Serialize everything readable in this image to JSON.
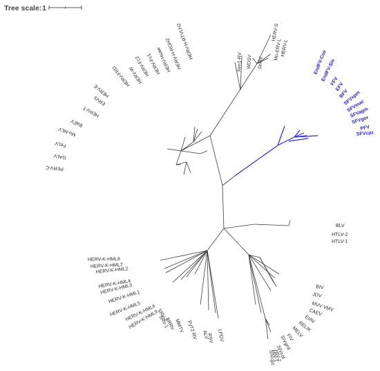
{
  "tree_scale": {
    "label": "Tree scale:",
    "value": "1"
  },
  "colors": {
    "highlight": "#2a2ae0",
    "branch": "#3a3a3a",
    "text": "#2a2a2a"
  },
  "labels": [
    {
      "id": "herv-s",
      "text": "HERV-S",
      "hl": false
    },
    {
      "id": "mo-erv-l",
      "text": "Mo-ERV-L",
      "hl": false
    },
    {
      "id": "herv-l",
      "text": "HERV-L",
      "hl": false
    },
    {
      "id": "sirv",
      "text": "SnRV",
      "hl": false
    },
    {
      "id": "wdsv",
      "text": "WDSV",
      "hl": false
    },
    {
      "id": "xen1-rv",
      "text": "Xen1-RV",
      "hl": false
    },
    {
      "id": "herv-h-rtvl-h2",
      "text": "HERV-H-RTVLH2",
      "hl": false
    },
    {
      "id": "herv-h-rgh2",
      "text": "HERV-H-RGH2",
      "hl": false
    },
    {
      "id": "herv-hsaw",
      "text": "HERV-Hsaw",
      "hl": false
    },
    {
      "id": "herv-fc1",
      "text": "HERV-Fc1",
      "hl": false
    },
    {
      "id": "herv-fc2",
      "text": "HERV-Fc2",
      "hl": false
    },
    {
      "id": "herv-w",
      "text": "HERV-W",
      "hl": false
    },
    {
      "id": "herv-frd",
      "text": "HERV-FRD",
      "hl": false
    },
    {
      "id": "herv-e",
      "text": "HERV-E",
      "hl": false
    },
    {
      "id": "erv3",
      "text": "ERV3",
      "hl": false
    },
    {
      "id": "herv-t",
      "text": "HERV-T",
      "hl": false
    },
    {
      "id": "baev",
      "text": "BaEV",
      "hl": false
    },
    {
      "id": "mo-mlv",
      "text": "Mo-MLV",
      "hl": false
    },
    {
      "id": "felv",
      "text": "FeLV",
      "hl": false
    },
    {
      "id": "galv",
      "text": "GALV",
      "hl": false
    },
    {
      "id": "perv-c",
      "text": "PERV-C",
      "hl": false
    },
    {
      "id": "endfv-coe",
      "text": "EndFV-Coe",
      "hl": true
    },
    {
      "id": "endfv-slo",
      "text": "EndFV-Slo",
      "hl": true
    },
    {
      "id": "ffv",
      "text": "FFV",
      "hl": true
    },
    {
      "id": "efv",
      "text": "EFV",
      "hl": true
    },
    {
      "id": "bfv",
      "text": "BFV",
      "hl": true
    },
    {
      "id": "sfvspm",
      "text": "SFVspm",
      "hl": true
    },
    {
      "id": "sfvmac",
      "text": "SFVmac",
      "hl": true
    },
    {
      "id": "sfvagm",
      "text": "SFVagm",
      "hl": true
    },
    {
      "id": "sfvgor",
      "text": "SFVgor",
      "hl": true
    },
    {
      "id": "pfv",
      "text": "PFV",
      "hl": true
    },
    {
      "id": "sfvcpz",
      "text": "SFVcpz",
      "hl": true
    },
    {
      "id": "blv",
      "text": "BLV",
      "hl": false
    },
    {
      "id": "htlv-2",
      "text": "HTLV-2",
      "hl": false
    },
    {
      "id": "htlv-1",
      "text": "HTLV-1",
      "hl": false
    },
    {
      "id": "biv",
      "text": "BIV",
      "hl": false
    },
    {
      "id": "jdv",
      "text": "JDV",
      "hl": false
    },
    {
      "id": "mvv-vmv",
      "text": "MVV VMV",
      "hl": false
    },
    {
      "id": "caev",
      "text": "CAEV",
      "hl": false
    },
    {
      "id": "eiav",
      "text": "EIAV",
      "hl": false
    },
    {
      "id": "relik",
      "text": "RELIK",
      "hl": false
    },
    {
      "id": "melv",
      "text": "MELV",
      "hl": false
    },
    {
      "id": "fiv",
      "text": "FIV",
      "hl": false
    },
    {
      "id": "sivgml",
      "text": "SIVgml",
      "hl": false
    },
    {
      "id": "sivcol",
      "text": "SIVcol",
      "hl": false
    },
    {
      "id": "hiv-2",
      "text": "HIV-2",
      "hl": false
    },
    {
      "id": "hiv-1",
      "text": "HIV-1",
      "hl": false
    },
    {
      "id": "sivcpz",
      "text": "SIVcpz",
      "hl": false
    },
    {
      "id": "lpdv",
      "text": "LPDV",
      "hl": false
    },
    {
      "id": "rsv",
      "text": "RSV",
      "hl": false
    },
    {
      "id": "alv",
      "text": "ALV",
      "hl": false
    },
    {
      "id": "py72-rv",
      "text": "PyT2-RV",
      "hl": false
    },
    {
      "id": "mmtv",
      "text": "MMTV",
      "hl": false
    },
    {
      "id": "srrv",
      "text": "SRRV",
      "hl": false
    },
    {
      "id": "srv-1",
      "text": "SRV-1",
      "hl": false
    },
    {
      "id": "srv-2",
      "text": "SRV-2",
      "hl": false
    },
    {
      "id": "herv-k-hml9",
      "text": "HERV-K-HML9",
      "hl": false
    },
    {
      "id": "herv-k-hml6",
      "text": "HERV-K-HML6",
      "hl": false
    },
    {
      "id": "herv-k-hml5",
      "text": "HERV-K-HML5",
      "hl": false
    },
    {
      "id": "herv-k-hml1",
      "text": "HERV-K-HML1",
      "hl": false
    },
    {
      "id": "herv-k-hml3",
      "text": "HERV-K-HML3",
      "hl": false
    },
    {
      "id": "herv-k-hml4",
      "text": "HERV-K-HML4",
      "hl": false
    },
    {
      "id": "herv-k-hml2",
      "text": "HERV-K-HML2",
      "hl": false
    },
    {
      "id": "herv-k-hml7",
      "text": "HERV-K-HML7",
      "hl": false
    },
    {
      "id": "herv-k-hml8",
      "text": "HERV-K-HML8",
      "hl": false
    }
  ]
}
